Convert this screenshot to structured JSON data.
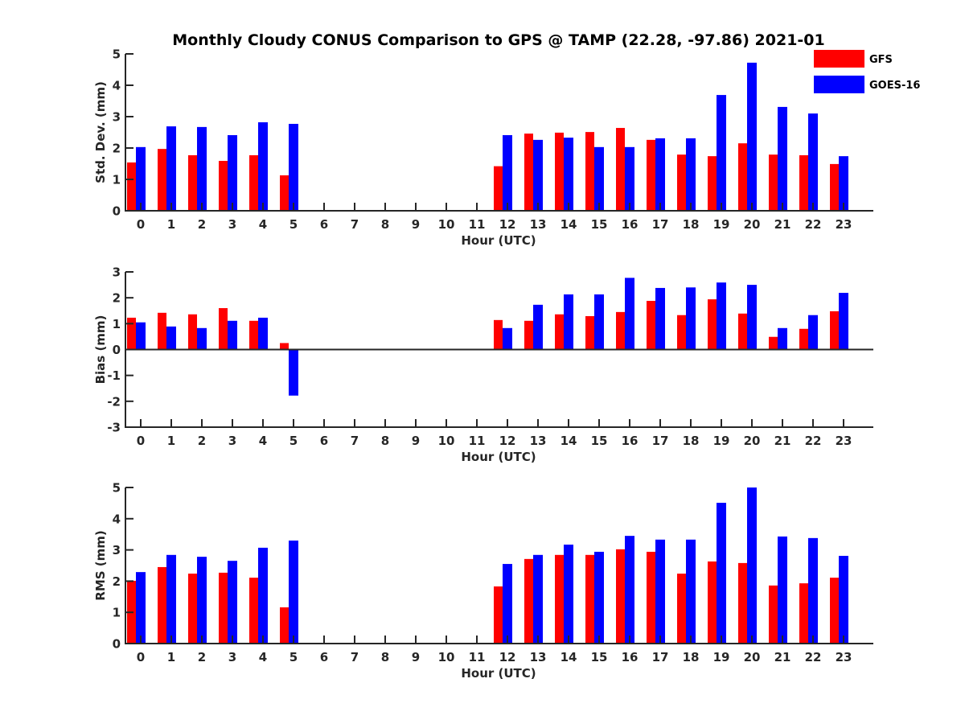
{
  "chart_data": {
    "type": "bar",
    "title": "Monthly Cloudy CONUS Comparison to GPS @ TAMP (22.28, -97.86) 2021-01",
    "legend": {
      "placement": "top-right",
      "entries": [
        {
          "name": "GFS",
          "color": "#ff0000"
        },
        {
          "name": "GOES-16",
          "color": "#0000ff"
        }
      ]
    },
    "categories": [
      "0",
      "1",
      "2",
      "3",
      "4",
      "5",
      "6",
      "7",
      "8",
      "9",
      "10",
      "11",
      "12",
      "13",
      "14",
      "15",
      "16",
      "17",
      "18",
      "19",
      "20",
      "21",
      "22",
      "23"
    ],
    "panels": [
      {
        "id": "std",
        "ylabel": "Std. Dev. (mm)",
        "xlabel": "Hour (UTC)",
        "ylim": [
          0,
          5
        ],
        "yticks": [
          0,
          1,
          2,
          3,
          4,
          5
        ],
        "grid": false,
        "series": [
          {
            "name": "GFS",
            "color": "#ff0000",
            "values": [
              1.54,
              1.97,
              1.77,
              1.59,
              1.77,
              1.13,
              null,
              null,
              null,
              null,
              null,
              null,
              1.42,
              2.46,
              2.49,
              2.51,
              2.64,
              2.26,
              1.79,
              1.74,
              2.15,
              1.79,
              1.77,
              1.49
            ]
          },
          {
            "name": "GOES-16",
            "color": "#0000ff",
            "values": [
              2.03,
              2.69,
              2.67,
              2.41,
              2.82,
              2.77,
              null,
              null,
              null,
              null,
              null,
              null,
              2.41,
              2.26,
              2.33,
              2.03,
              2.03,
              2.31,
              2.31,
              3.69,
              4.72,
              3.31,
              3.1,
              1.74
            ]
          }
        ]
      },
      {
        "id": "bias",
        "ylabel": "Bias (mm)",
        "xlabel": "Hour (UTC)",
        "ylim": [
          -3,
          3
        ],
        "yticks": [
          -3,
          -2,
          -1,
          0,
          1,
          2,
          3
        ],
        "grid": false,
        "series": [
          {
            "name": "GFS",
            "color": "#ff0000",
            "values": [
              1.23,
              1.42,
              1.36,
              1.6,
              1.11,
              0.25,
              null,
              null,
              null,
              null,
              null,
              null,
              1.14,
              1.11,
              1.36,
              1.29,
              1.45,
              1.88,
              1.33,
              1.94,
              1.39,
              0.49,
              0.8,
              1.48
            ]
          },
          {
            "name": "GOES-16",
            "color": "#0000ff",
            "values": [
              1.05,
              0.89,
              0.83,
              1.11,
              1.23,
              -1.78,
              null,
              null,
              null,
              null,
              null,
              null,
              0.83,
              1.73,
              2.13,
              2.13,
              2.77,
              2.38,
              2.4,
              2.59,
              2.5,
              0.83,
              1.33,
              2.19
            ]
          }
        ]
      },
      {
        "id": "rms",
        "ylabel": "RMS (mm)",
        "xlabel": "Hour (UTC)",
        "ylim": [
          0,
          5
        ],
        "yticks": [
          0,
          1,
          2,
          3,
          4,
          5
        ],
        "grid": false,
        "series": [
          {
            "name": "GFS",
            "color": "#ff0000",
            "values": [
              2.01,
              2.45,
              2.24,
              2.27,
              2.11,
              1.16,
              null,
              null,
              null,
              null,
              null,
              null,
              1.83,
              2.71,
              2.84,
              2.84,
              3.02,
              2.94,
              2.24,
              2.63,
              2.58,
              1.86,
              1.93,
              2.11
            ]
          },
          {
            "name": "GOES-16",
            "color": "#0000ff",
            "values": [
              2.29,
              2.84,
              2.78,
              2.65,
              3.07,
              3.3,
              null,
              null,
              null,
              null,
              null,
              null,
              2.55,
              2.84,
              3.17,
              2.94,
              3.45,
              3.33,
              3.33,
              4.51,
              5.0,
              3.43,
              3.38,
              2.81
            ]
          }
        ]
      }
    ]
  }
}
